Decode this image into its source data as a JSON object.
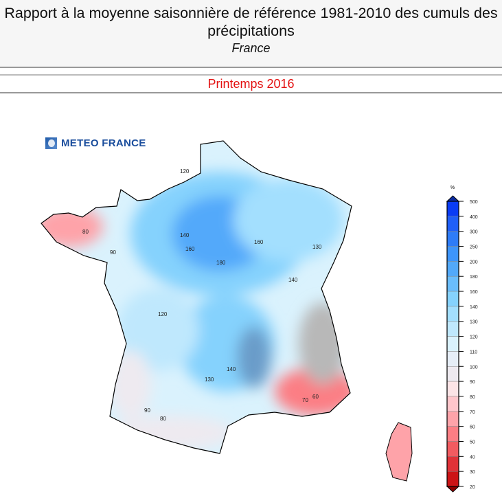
{
  "header": {
    "title": "Rapport à la moyenne saisonnière de référence 1981-2010 des cumuls des précipitations",
    "region": "France"
  },
  "period": "Printemps 2016",
  "logo": {
    "text": "METEO FRANCE"
  },
  "legend": {
    "unit": "%",
    "ticks": [
      "500",
      "400",
      "300",
      "250",
      "200",
      "180",
      "160",
      "140",
      "130",
      "120",
      "110",
      "100",
      "90",
      "80",
      "70",
      "60",
      "50",
      "40",
      "30",
      "20"
    ],
    "colors": [
      "#0a3cf5",
      "#1f5ff8",
      "#2e7cf8",
      "#3d95fb",
      "#52a9fa",
      "#6abdfc",
      "#85d2fd",
      "#a3dffe",
      "#bfe8fd",
      "#daf2fd",
      "#e6eef7",
      "#eeeaf0",
      "#fce4e6",
      "#ffc6cb",
      "#fea3a9",
      "#fc7e84",
      "#f25b60",
      "#e03238",
      "#cc1416"
    ],
    "over_color": "#0b2a9e",
    "under_color": "#8b0000"
  },
  "map": {
    "contour_labels": [
      "120",
      "140",
      "160",
      "180",
      "160",
      "140",
      "130",
      "120",
      "140",
      "130",
      "90",
      "80",
      "70",
      "60",
      "80",
      "90"
    ]
  }
}
